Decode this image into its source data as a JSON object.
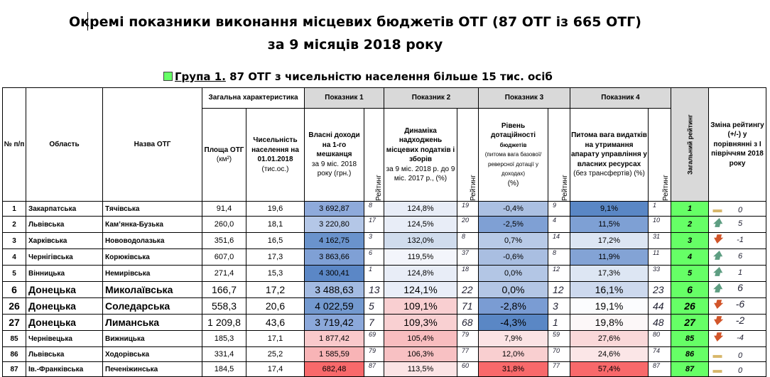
{
  "title_line1": "Окремі показники виконання місцевих бюджетів ОТГ (87 ОТГ із 665 ОТГ)",
  "title_line2": "за 9 місяців 2018 року",
  "group_label": "Група 1.",
  "group_text": " 87 ОТГ з чисельністю населення більше 15 тис. осіб",
  "headers": {
    "no": "№ п/п",
    "oblast": "Область",
    "name": "Назва ОТГ",
    "general": "Загальна характеристика",
    "area": "Площа ОТГ",
    "area_unit": "(км²)",
    "population": "Чисельність населення на 01.01.2018",
    "population_unit": "(тис.ос.)",
    "p1": "Показник 1",
    "p1_desc": "Власні доходи на 1-го мешканця",
    "p1_sub": "за 9 міс. 2018 року (грн.)",
    "p2": "Показник 2",
    "p2_desc": "Динаміка надходжень місцевих податків і зборів",
    "p2_sub": "за 9 міс. 2018 р. до 9 міс. 2017 р., (%)",
    "p3": "Показник 3",
    "p3_desc": "Рівень дотаційності",
    "p3_desc2": "бюджетів",
    "p3_sub": "(питома вага базової/ реверсної дотації у доходах)",
    "p3_unit": "(%)",
    "p4": "Показник 4",
    "p4_desc": "Питома вага видатків на утримання апарату управління у власних ресурсах",
    "p4_sub": "(без трансфертів) (%)",
    "rating": "Рейтинг",
    "total": "Загальний рейтинг",
    "change": "Зміна рейтингу (+/-) у порівнянні з І півріччям 2018 року"
  },
  "colors": {
    "up": "#5e9e82",
    "down": "#d2552a",
    "same": "#d8b76a",
    "total_bg": "#66ff66"
  },
  "rows": [
    {
      "no": "1",
      "oblast": "Закарпатська",
      "name": "Тячівська",
      "area": "91,4",
      "pop": "19,6",
      "p1": "3 692,87",
      "p1bg": "#8eaadb",
      "r1": "8",
      "p2": "124,8%",
      "p2bg": "#e8edf7",
      "r2": "19",
      "p3": "-0,4%",
      "p3bg": "#abc0e2",
      "r3": "9",
      "p4": "9,1%",
      "p4bg": "#5a87c5",
      "r4": "1",
      "total": "1",
      "trend": "same",
      "change": "0",
      "big": false
    },
    {
      "no": "2",
      "oblast": "Львівська",
      "name": "Кам’янка-Бузька",
      "area": "260,0",
      "pop": "18,1",
      "p1": "3 220,80",
      "p1bg": "#b4c7e7",
      "r1": "17",
      "p2": "124,5%",
      "p2bg": "#e8edf7",
      "r2": "20",
      "p3": "-2,5%",
      "p3bg": "#7fa0d4",
      "r3": "4",
      "p4": "11,5%",
      "p4bg": "#7ea0d4",
      "r4": "10",
      "total": "2",
      "trend": "up",
      "change": "5",
      "big": false
    },
    {
      "no": "3",
      "oblast": "Харківська",
      "name": "Нововодолазька",
      "area": "351,6",
      "pop": "16,5",
      "p1": "4 162,75",
      "p1bg": "#6a93cc",
      "r1": "3",
      "p2": "132,0%",
      "p2bg": "#d0dced",
      "r2": "8",
      "p3": "0,7%",
      "p3bg": "#b8cae7",
      "r3": "14",
      "p4": "17,2%",
      "p4bg": "#dce5f3",
      "r4": "31",
      "total": "3",
      "trend": "down",
      "change": "-1",
      "big": false
    },
    {
      "no": "4",
      "oblast": "Чернігівська",
      "name": "Корюківська",
      "area": "607,0",
      "pop": "17,3",
      "p1": "3 863,66",
      "p1bg": "#7fa0d5",
      "r1": "6",
      "p2": "119,5%",
      "p2bg": "#f3f5fb",
      "r2": "37",
      "p3": "-0,6%",
      "p3bg": "#a9bee1",
      "r3": "8",
      "p4": "11,9%",
      "p4bg": "#83a3d5",
      "r4": "11",
      "total": "4",
      "trend": "up",
      "change": "6",
      "big": false
    },
    {
      "no": "5",
      "oblast": "Вінницька",
      "name": "Немирівська",
      "area": "271,4",
      "pop": "15,3",
      "p1": "4 300,41",
      "p1bg": "#5b87c6",
      "r1": "1",
      "p2": "124,8%",
      "p2bg": "#e8edf7",
      "r2": "18",
      "p3": "0,0%",
      "p3bg": "#b3c6e5",
      "r3": "12",
      "p4": "17,3%",
      "p4bg": "#dde6f3",
      "r4": "33",
      "total": "5",
      "trend": "up",
      "change": "1",
      "big": false
    },
    {
      "no": "6",
      "oblast": "Донецька",
      "name": "Миколаївська",
      "area": "166,7",
      "pop": "17,2",
      "p1": "3 488,63",
      "p1bg": "#a3bbe2",
      "r1": "13",
      "p2": "124,1%",
      "p2bg": "#e9eef8",
      "r2": "22",
      "p3": "0,0%",
      "p3bg": "#b3c6e5",
      "r3": "12",
      "p4": "16,1%",
      "p4bg": "#cdd9ee",
      "r4": "23",
      "total": "6",
      "trend": "up",
      "change": "6",
      "big": true
    },
    {
      "no": "26",
      "oblast": "Донецька",
      "name": "Соледарська",
      "area": "558,3",
      "pop": "20,6",
      "p1": "4 022,59",
      "p1bg": "#7399cf",
      "r1": "5",
      "p2": "109,1%",
      "p2bg": "#f9cfd1",
      "r2": "71",
      "p3": "-2,8%",
      "p3bg": "#7a9cd3",
      "r3": "3",
      "p4": "19,1%",
      "p4bg": "#fbfcfe",
      "r4": "44",
      "total": "26",
      "trend": "down",
      "change": "-6",
      "big": true
    },
    {
      "no": "27",
      "oblast": "Донецька",
      "name": "Лиманська",
      "area": "1 209,8",
      "pop": "43,6",
      "p1": "3 719,42",
      "p1bg": "#8ba8da",
      "r1": "7",
      "p2": "109,3%",
      "p2bg": "#f9d0d2",
      "r2": "68",
      "p3": "-4,3%",
      "p3bg": "#5a87c5",
      "r3": "1",
      "p4": "19,8%",
      "p4bg": "#fcf7f8",
      "r4": "48",
      "total": "27",
      "trend": "down",
      "change": "-2",
      "big": true
    },
    {
      "no": "85",
      "oblast": "Чернівецька",
      "name": "Вижницька",
      "area": "185,3",
      "pop": "17,1",
      "p1": "1 877,42",
      "p1bg": "#f9c9cb",
      "r1": "69",
      "p2": "105,4%",
      "p2bg": "#f8bdbf",
      "r2": "79",
      "p3": "7,9%",
      "p3bg": "#fbe3e4",
      "r3": "59",
      "p4": "27,6%",
      "p4bg": "#fad8d9",
      "r4": "80",
      "total": "85",
      "trend": "down",
      "change": "-4",
      "big": false
    },
    {
      "no": "86",
      "oblast": "Львівська",
      "name": "Ходорівська",
      "area": "331,4",
      "pop": "25,2",
      "p1": "1 585,59",
      "p1bg": "#f8b4b6",
      "r1": "79",
      "p2": "106,3%",
      "p2bg": "#f8c1c3",
      "r2": "77",
      "p3": "12,0%",
      "p3bg": "#f9cfd0",
      "r3": "70",
      "p4": "24,6%",
      "p4bg": "#fbe6e7",
      "r4": "74",
      "total": "86",
      "trend": "same",
      "change": "0",
      "big": false
    },
    {
      "no": "87",
      "oblast": "Ів.-Франківська",
      "name": "Печеніжинська",
      "area": "184,5",
      "pop": "17,4",
      "p1": "682,48",
      "p1bg": "#f8696b",
      "r1": "87",
      "p2": "113,5%",
      "p2bg": "#fbe4e5",
      "r2": "60",
      "p3": "31,8%",
      "p3bg": "#f8696b",
      "r3": "77",
      "p4": "57,4%",
      "p4bg": "#f8696b",
      "r4": "87",
      "total": "87",
      "trend": "same",
      "change": "0",
      "big": false
    }
  ]
}
